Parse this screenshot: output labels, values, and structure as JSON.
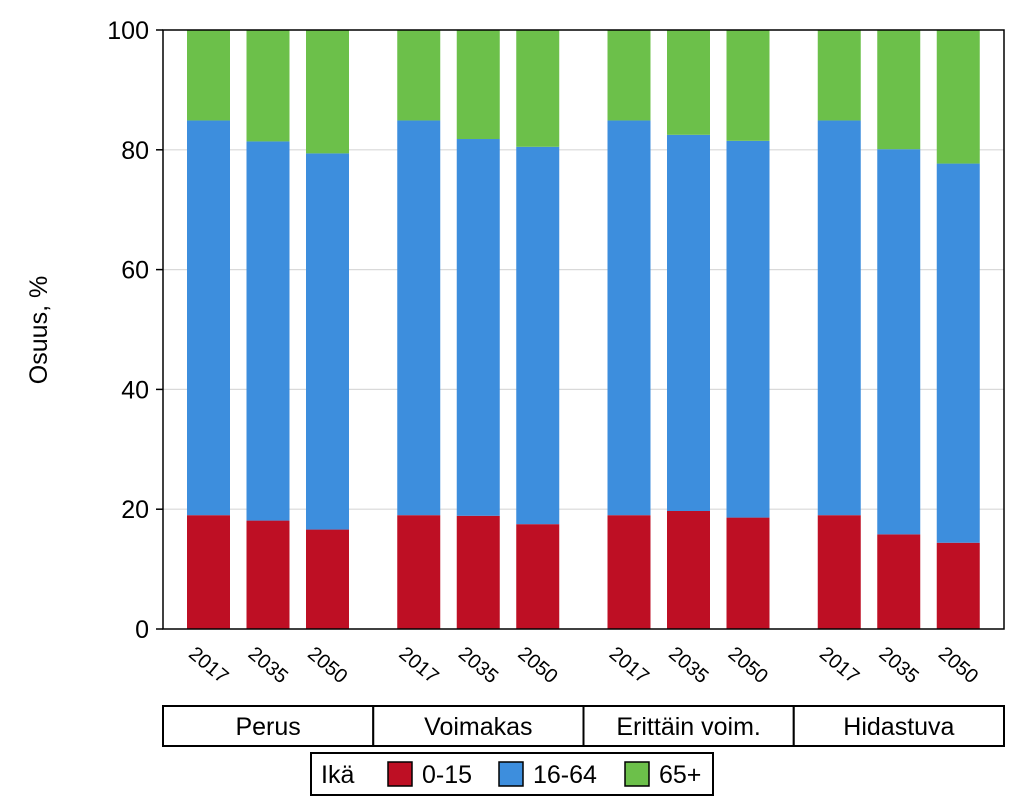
{
  "chart_data": {
    "type": "bar",
    "stacked": true,
    "ylabel": "Osuus, %",
    "ylim": [
      0,
      100
    ],
    "yticks": [
      0,
      20,
      40,
      60,
      80,
      100
    ],
    "grid": "horizontal",
    "groups": [
      {
        "name": "Perus",
        "categories": [
          "2017",
          "2035",
          "2050"
        ]
      },
      {
        "name": "Voimakas",
        "categories": [
          "2017",
          "2035",
          "2050"
        ]
      },
      {
        "name": "Erittäin voim.",
        "categories": [
          "2017",
          "2035",
          "2050"
        ]
      },
      {
        "name": "Hidastuva",
        "categories": [
          "2017",
          "2035",
          "2050"
        ]
      }
    ],
    "series": [
      {
        "name": "0-15",
        "color": "#BE0F24",
        "values": [
          19.0,
          18.1,
          16.6,
          19.0,
          18.9,
          17.5,
          19.0,
          19.7,
          18.6,
          19.0,
          15.8,
          14.4
        ]
      },
      {
        "name": "16-64",
        "color": "#3D8EDD",
        "values": [
          65.9,
          63.3,
          62.8,
          65.9,
          62.9,
          63.0,
          65.9,
          62.8,
          62.9,
          65.9,
          64.3,
          63.3
        ]
      },
      {
        "name": "65+",
        "color": "#6CC04A",
        "values": [
          15.1,
          18.6,
          20.6,
          15.1,
          18.2,
          19.5,
          15.1,
          17.5,
          18.5,
          15.1,
          19.9,
          22.3
        ]
      }
    ],
    "legend": {
      "title": "Ikä",
      "position": "bottom"
    }
  }
}
